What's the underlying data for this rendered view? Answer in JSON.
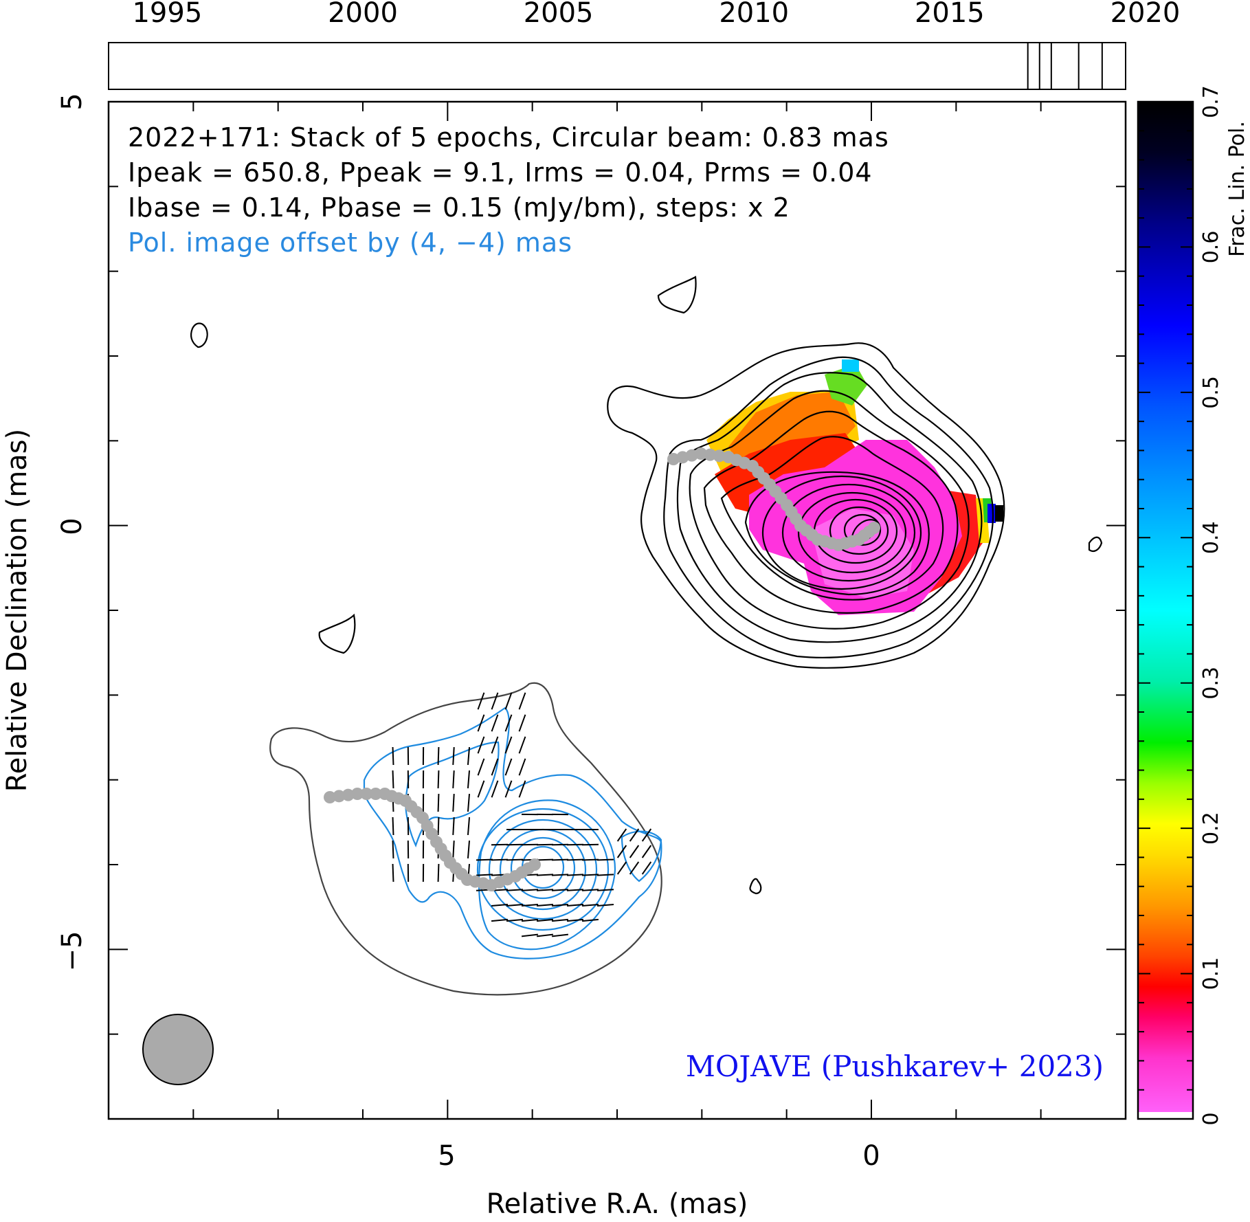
{
  "chart_data": {
    "type": "heatmap",
    "source": "2022+171",
    "info": {
      "line1": "2022+171: Stack of 5 epochs, Circular beam: 0.83 mas",
      "line2": "Ipeak = 650.8, Ppeak = 9.1, Irms = 0.04, Prms = 0.04",
      "line3": "Ibase = 0.14, Pbase = 0.15 (mJy/bm), steps: x 2",
      "line4": "Pol. image offset by (4, −4) mas"
    },
    "credit": "MOJAVE (Pushkarev+ 2023)",
    "xlabel": "Relative R.A. (mas)",
    "ylabel": "Relative Declination (mas)",
    "xlim": [
      9,
      -3
    ],
    "ylim": [
      -7,
      5
    ],
    "x_ticks": [
      "5",
      "0"
    ],
    "y_ticks": [
      "5",
      "0",
      "−5"
    ],
    "timeline": {
      "labels": [
        "1995",
        "2000",
        "2005",
        "2010",
        "2015",
        "2020"
      ],
      "epochs": [
        2017.0,
        2017.3,
        2017.6,
        2018.3,
        2018.9
      ]
    },
    "colorbar": {
      "label": "Frac. Lin. Pol.",
      "ticks": [
        "0",
        "0.1",
        "0.2",
        "0.3",
        "0.4",
        "0.5",
        "0.6",
        "0.7"
      ],
      "range": [
        0,
        0.7
      ]
    },
    "beam_mas": 0.83,
    "pol_offset_mas": [
      4,
      -4
    ]
  }
}
